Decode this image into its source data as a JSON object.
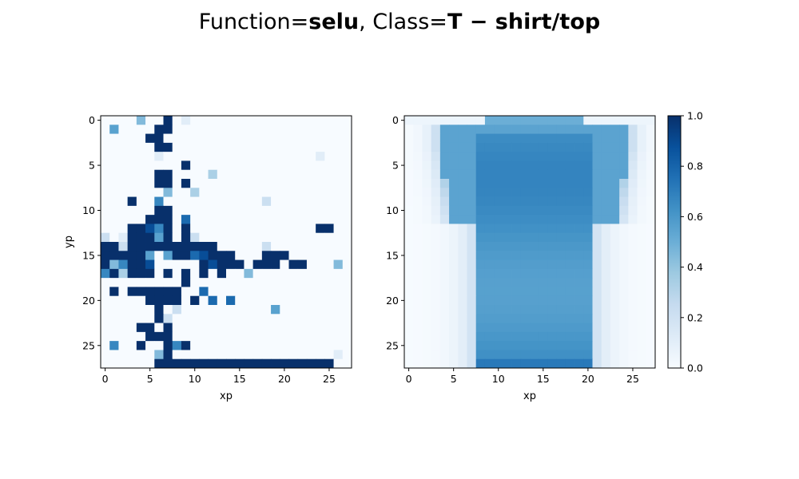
{
  "figure": {
    "title_parts": {
      "fn_prefix": "Function=",
      "fn_name": "selu",
      "class_prefix": ", Class=",
      "class_name": "T − shirt/top"
    }
  },
  "colors": {
    "cmap_low": "#f7fbff",
    "cmap_mid": "#6baed6",
    "cmap_high": "#08306b",
    "axis": "#000000"
  },
  "chart_data": [
    {
      "type": "heatmap",
      "colormap": "Blues",
      "grid": false,
      "xlabel": "xp",
      "ylabel": "yp",
      "xlim": [
        -0.5,
        27.5
      ],
      "ylim": [
        27.5,
        -0.5
      ],
      "x_ticks": [
        0,
        5,
        10,
        15,
        20,
        25
      ],
      "y_ticks": [
        0,
        5,
        10,
        15,
        20,
        25
      ],
      "x_tick_labels": [
        "0",
        "5",
        "10",
        "15",
        "20",
        "25"
      ],
      "y_tick_labels": [
        "0",
        "5",
        "10",
        "15",
        "20",
        "25"
      ],
      "rows": [
        "000040090100000000000000000",
        "050000990000000000000000000",
        "000009900000000000000000000",
        "000000990000000000000000000",
        "000000100000000000000000100",
        "000000000900000000000000000",
        "000000990000300000000000000",
        "000000990900000000000000000",
        "000000040030000000000000000",
        "000900600000000000200000000",
        "000000990000000000000000000",
        "000009990700000000000000000",
        "000998690900000000000000990",
        "201999590920000000000000000",
        "992999999999900000200000000",
        "999995059978999000999000000",
        "946998000009899909990990004",
        "693999090909090040000000000",
        "000000000900000000000000000",
        "090999999007000000000000000",
        "000009999090707000000000000",
        "000000902000000000050000000",
        "000000920000000000000000000",
        "000099090000000000000000000",
        "000009990000000000000000000",
        "060090096900000000000000000",
        "000000490000000000000000001",
        "000000999999999999999999990"
      ]
    },
    {
      "type": "heatmap",
      "colormap": "Blues",
      "grid": false,
      "xlabel": "xp",
      "ylabel": "",
      "xlim": [
        -0.5,
        27.5
      ],
      "ylim": [
        27.5,
        -0.5
      ],
      "x_ticks": [
        0,
        5,
        10,
        15,
        20,
        25
      ],
      "y_ticks": [
        0,
        5,
        10,
        15,
        20,
        25
      ],
      "x_tick_labels": [
        "0",
        "5",
        "10",
        "15",
        "20",
        "25"
      ],
      "y_tick_labels": [
        "0",
        "5",
        "10",
        "15",
        "20",
        "25"
      ],
      "description_of_values": "average T-shirt/top silhouette: body columns ~8-20 rows ~4-27 value ~0.55-0.7, sleeves to columns 3-24 rows ~3-12, fading edges",
      "colorbar": {
        "min": 0.0,
        "max": 1.0,
        "ticks": [
          0.0,
          0.2,
          0.4,
          0.6,
          0.8,
          1.0
        ],
        "tick_labels": [
          "0.0",
          "0.2",
          "0.4",
          "0.6",
          "0.8",
          "1.0"
        ]
      }
    }
  ]
}
